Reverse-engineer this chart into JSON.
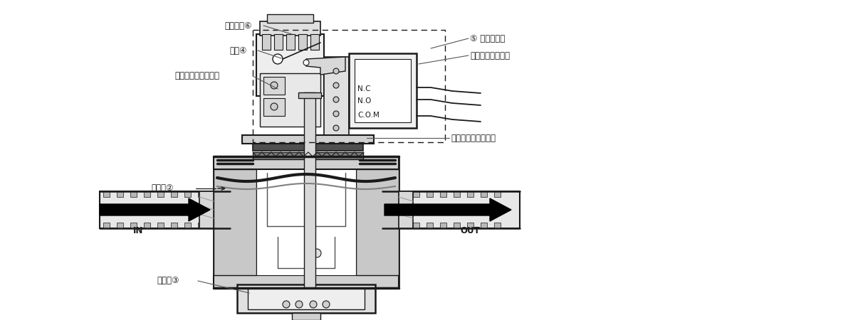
{
  "bg_color": "#ffffff",
  "line_color": "#1a1a1a",
  "gray_fill": "#c8c8c8",
  "mid_gray": "#a0a0a0",
  "dark_gray": "#505050",
  "labels": {
    "label1": "調整ギア⑥",
    "label2": "ギア④",
    "label3": "設定流量標示レバー",
    "label4": "⑤ 作動レバー",
    "label5": "マイクロスイッチ",
    "label6": "保護用ダイヤフラム",
    "label7": "ボディ②",
    "label8": "ロッド③",
    "label_in": "IN",
    "label_out": "OUT",
    "nc": "N.C",
    "no": "N.O",
    "com": "C.O.M"
  }
}
